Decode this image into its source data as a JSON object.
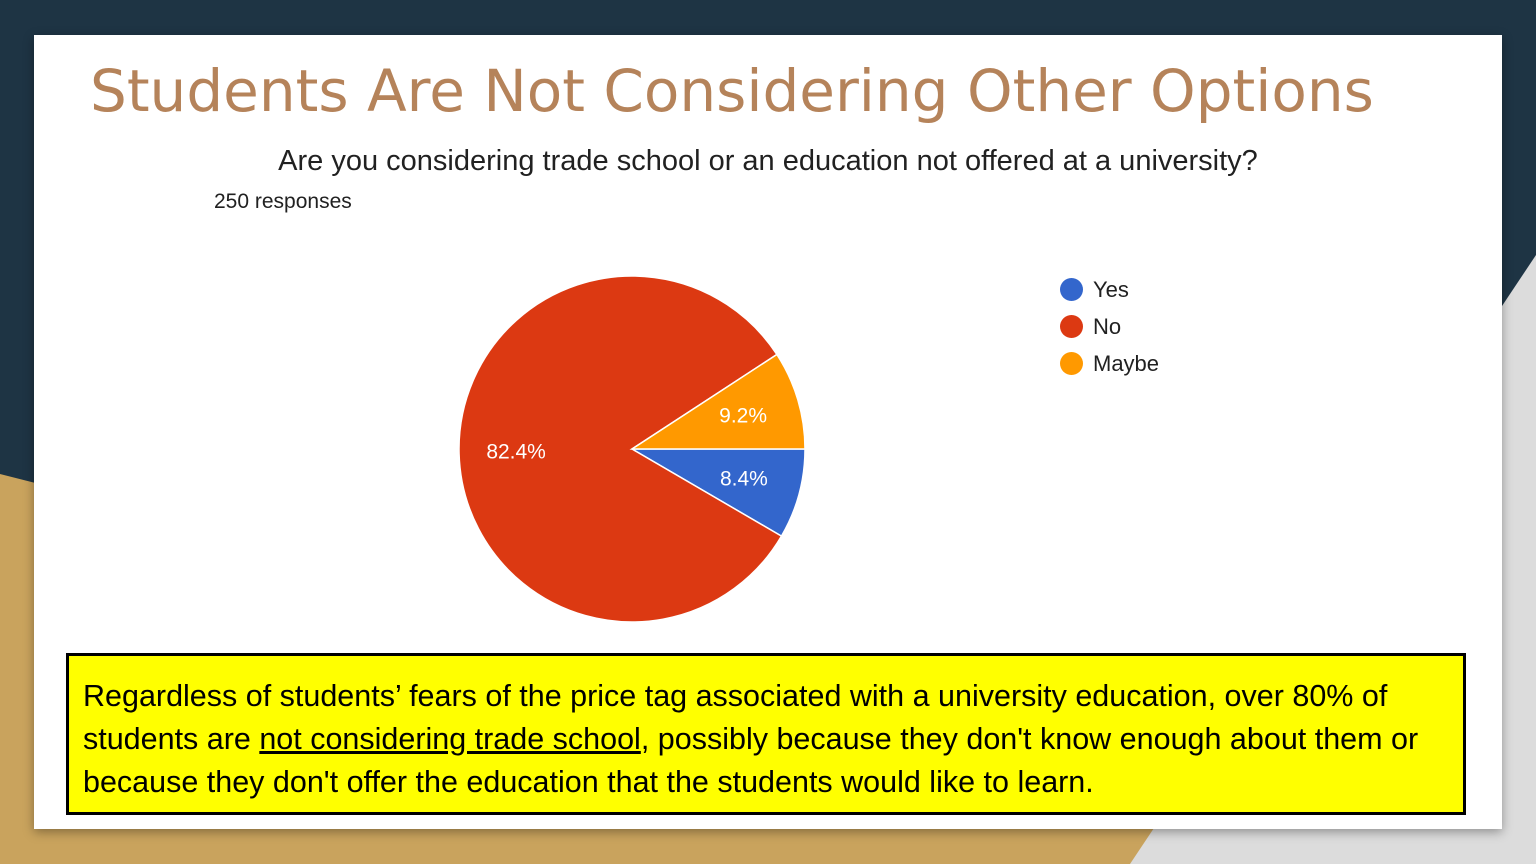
{
  "slide": {
    "title": "Students Are Not Considering Other Options"
  },
  "chart_data": {
    "type": "pie",
    "title": "Are you considering trade school or an education not offered at a university?",
    "subtitle": "250 responses",
    "slices": [
      {
        "label": "Yes",
        "value": 8.4,
        "value_label": "8.4%",
        "color": "#3366cc"
      },
      {
        "label": "No",
        "value": 82.4,
        "value_label": "82.4%",
        "color": "#dc3912"
      },
      {
        "label": "Maybe",
        "value": 9.2,
        "value_label": "9.2%",
        "color": "#ff9900"
      }
    ],
    "legend": "right"
  },
  "callout": {
    "text_before": "Regardless of students’ fears of the price tag associated with a university education, over 80% of students are ",
    "text_underlined": "not considering trade school",
    "text_after": ", possibly because they don't know enough about them or because they don't offer the education that the students would like to learn."
  }
}
